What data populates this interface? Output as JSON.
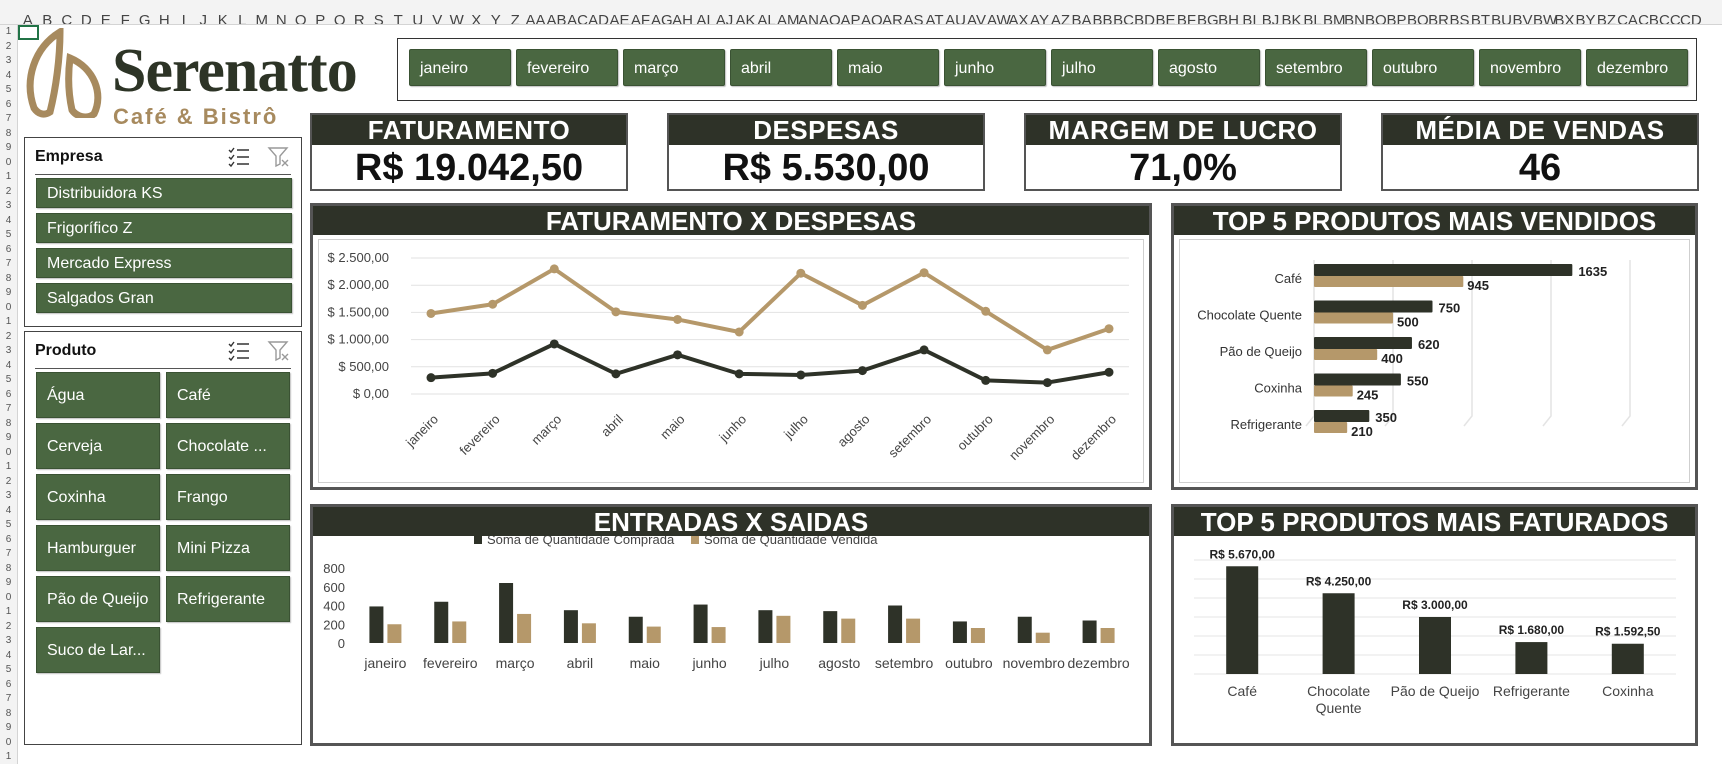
{
  "columns": [
    "A",
    "B",
    "C",
    "D",
    "E",
    "F",
    "G",
    "H",
    "I",
    "J",
    "K",
    "L",
    "M",
    "N",
    "O",
    "P",
    "Q",
    "R",
    "S",
    "T",
    "U",
    "V",
    "W",
    "X",
    "Y",
    "Z",
    "AA",
    "AB",
    "AC",
    "AD",
    "AE",
    "AF",
    "AG",
    "AH",
    "AI",
    "AJ",
    "AK",
    "AL",
    "AM",
    "AN",
    "AO",
    "AP",
    "AQ",
    "AR",
    "AS",
    "AT",
    "AU",
    "AV",
    "AW",
    "AX",
    "AY",
    "AZ",
    "BA",
    "BB",
    "BC",
    "BD",
    "BE",
    "BF",
    "BG",
    "BH",
    "BI",
    "BJ",
    "BK",
    "BL",
    "BM",
    "BN",
    "BO",
    "BP",
    "BQ",
    "BR",
    "BS",
    "BT",
    "BU",
    "BV",
    "BW",
    "BX",
    "BY",
    "BZ",
    "CA",
    "CB",
    "CC",
    "CD"
  ],
  "logo": {
    "title": "Serenatto",
    "subtitle": "Café & Bistrô"
  },
  "months": [
    "janeiro",
    "fevereiro",
    "março",
    "abril",
    "maio",
    "junho",
    "julho",
    "agosto",
    "setembro",
    "outubro",
    "novembro",
    "dezembro"
  ],
  "kpis": [
    {
      "title": "FATURAMENTO",
      "value": "R$ 19.042,50"
    },
    {
      "title": "DESPESAS",
      "value": "R$ 5.530,00"
    },
    {
      "title": "MARGEM DE LUCRO",
      "value": "71,0%"
    },
    {
      "title": "MÉDIA DE VENDAS",
      "value": "46"
    }
  ],
  "slicer_empresa": {
    "title": "Empresa",
    "items": [
      "Distribuidora KS",
      "Frigorífico Z",
      "Mercado Express",
      "Salgados Gran"
    ]
  },
  "slicer_produto": {
    "title": "Produto",
    "items": [
      "Água",
      "Café",
      "Cerveja",
      "Chocolate ...",
      "Coxinha",
      "Frango",
      "Hamburguer",
      "Mini Pizza",
      "Pão de Queijo",
      "Refrigerante",
      "Suco de Lar..."
    ]
  },
  "panels": {
    "fat_desp": "FATURAMENTO X DESPESAS",
    "top_vendidos": "TOP 5 PRODUTOS MAIS VENDIDOS",
    "entradas_saidas": "ENTRADAS X SAIDAS",
    "top_faturados": "TOP 5 PRODUTOS MAIS FATURADOS"
  },
  "colors": {
    "dark": "#2e3228",
    "tan": "#b5986a",
    "green": "#4a6741"
  },
  "chart_data": [
    {
      "id": "fat_desp",
      "type": "line",
      "categories": [
        "janeiro",
        "fevereiro",
        "março",
        "abril",
        "maio",
        "junho",
        "julho",
        "agosto",
        "setembro",
        "outubro",
        "novembro",
        "dezembro"
      ],
      "series": [
        {
          "values": [
            1480,
            1650,
            2300,
            1510,
            1370,
            1140,
            2220,
            1630,
            2230,
            1520,
            810,
            1200
          ]
        },
        {
          "values": [
            300,
            380,
            920,
            370,
            720,
            370,
            350,
            430,
            810,
            250,
            210,
            400
          ]
        }
      ],
      "y_ticks": [
        "$ 0,00",
        "$ 500,00",
        "$ 1.000,00",
        "$ 1.500,00",
        "$ 2.000,00",
        "$ 2.500,00"
      ],
      "ylim": [
        0,
        2500
      ],
      "grid": true
    },
    {
      "id": "top_vendidos",
      "type": "bar",
      "orientation": "horizontal",
      "categories": [
        "Café",
        "Chocolate Quente",
        "Pão de Queijo",
        "Coxinha",
        "Refrigerante"
      ],
      "series": [
        {
          "values": [
            1635,
            750,
            620,
            550,
            350
          ]
        },
        {
          "values": [
            945,
            500,
            400,
            245,
            210
          ]
        }
      ],
      "xlim": [
        0,
        2000
      ]
    },
    {
      "id": "entradas_saidas",
      "type": "bar",
      "categories": [
        "janeiro",
        "fevereiro",
        "março",
        "abril",
        "maio",
        "junho",
        "julho",
        "agosto",
        "setembro",
        "outubro",
        "novembro",
        "dezembro"
      ],
      "series": [
        {
          "name": "Soma de Quantidade Comprada",
          "values": [
            390,
            440,
            640,
            350,
            280,
            410,
            350,
            340,
            400,
            230,
            280,
            240
          ]
        },
        {
          "name": "Soma de Quantidade Vendida",
          "values": [
            200,
            230,
            310,
            210,
            175,
            170,
            290,
            260,
            260,
            160,
            110,
            160
          ]
        }
      ],
      "y_ticks": [
        "0",
        "200",
        "400",
        "600",
        "800"
      ],
      "ylim": [
        0,
        800
      ],
      "legend": "top"
    },
    {
      "id": "top_faturados",
      "type": "bar",
      "categories": [
        "Café",
        "Chocolate Quente",
        "Pão de Queijo",
        "Refrigerante",
        "Coxinha"
      ],
      "values": [
        5670,
        4250,
        3000,
        1680,
        1592.5
      ],
      "data_labels": [
        "R$ 5.670,00",
        "R$ 4.250,00",
        "R$ 3.000,00",
        "R$ 1.680,00",
        "R$ 1.592,50"
      ],
      "ylim": [
        0,
        6000
      ],
      "grid": true
    }
  ]
}
